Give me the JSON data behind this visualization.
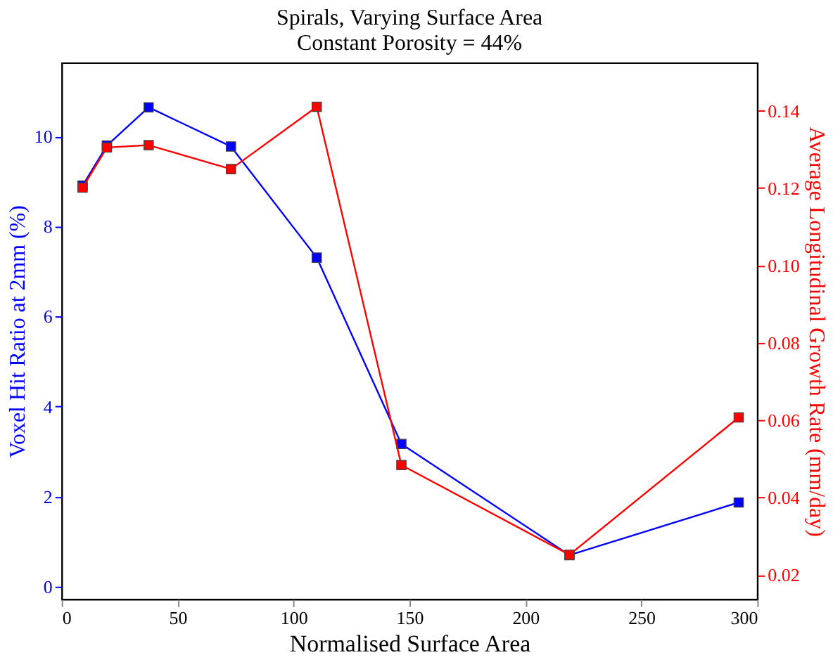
{
  "chart_data": {
    "type": "line",
    "title": "Spirals, Varying Surface Area",
    "subtitle": "Constant Porosity = 44%",
    "xlabel": "Normalised Surface Area",
    "ylabel": "Voxel Hit Ratio at 2mm (%)",
    "y2label": "Average Longitudinal Growth Rate (mm/day)",
    "x": [
      9,
      19.5,
      37.5,
      73,
      110,
      146.5,
      219,
      292
    ],
    "series": [
      {
        "color": "#0000ff",
        "values": [
          8.91,
          9.8,
          10.65,
          9.78,
          7.31,
          3.17,
          0.7,
          1.87
        ]
      },
      {
        "color": "#ff0000",
        "axis": "y2",
        "values": [
          0.1201,
          0.1305,
          0.1311,
          0.1249,
          0.141,
          0.0484,
          0.0252,
          0.0607
        ]
      }
    ],
    "xlim": [
      0,
      300
    ],
    "xticks": [
      0,
      50,
      100,
      150,
      200,
      250,
      300
    ],
    "ylim": [
      -0.28,
      11.64
    ],
    "yticks": [
      0,
      2,
      4,
      6,
      8,
      10
    ],
    "y2lim": [
      0.0137,
      0.1524
    ],
    "y2ticks": [
      {
        "value": 0.02,
        "label": "0.02"
      },
      {
        "value": 0.04,
        "label": "0.04"
      },
      {
        "value": 0.06,
        "label": "0.06"
      },
      {
        "value": 0.08,
        "label": "0.08"
      },
      {
        "value": 0.1,
        "label": "0.10"
      },
      {
        "value": 0.12,
        "label": "0.12"
      },
      {
        "value": 0.14,
        "label": "0.14"
      }
    ],
    "marker": "square",
    "line_style": "solid",
    "grid": false
  }
}
